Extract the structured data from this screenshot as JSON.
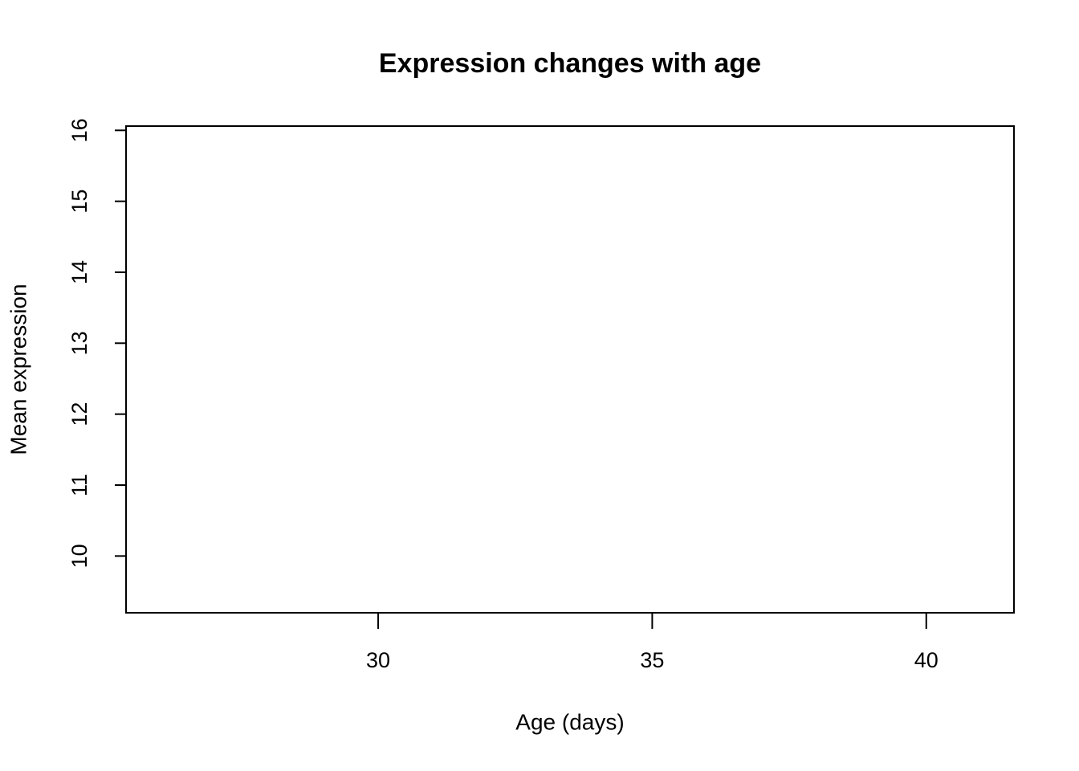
{
  "chart_data": {
    "type": "scatter",
    "title": "Expression changes with age",
    "x_label": "Age (days)",
    "y_label": "Mean expression",
    "xlim": [
      25.4,
      41.6
    ],
    "xticks": [
      30,
      35,
      40
    ],
    "ylim": [
      9.2,
      16.06
    ],
    "yticks": [
      10,
      11,
      12,
      13,
      14,
      15,
      16
    ]
  }
}
